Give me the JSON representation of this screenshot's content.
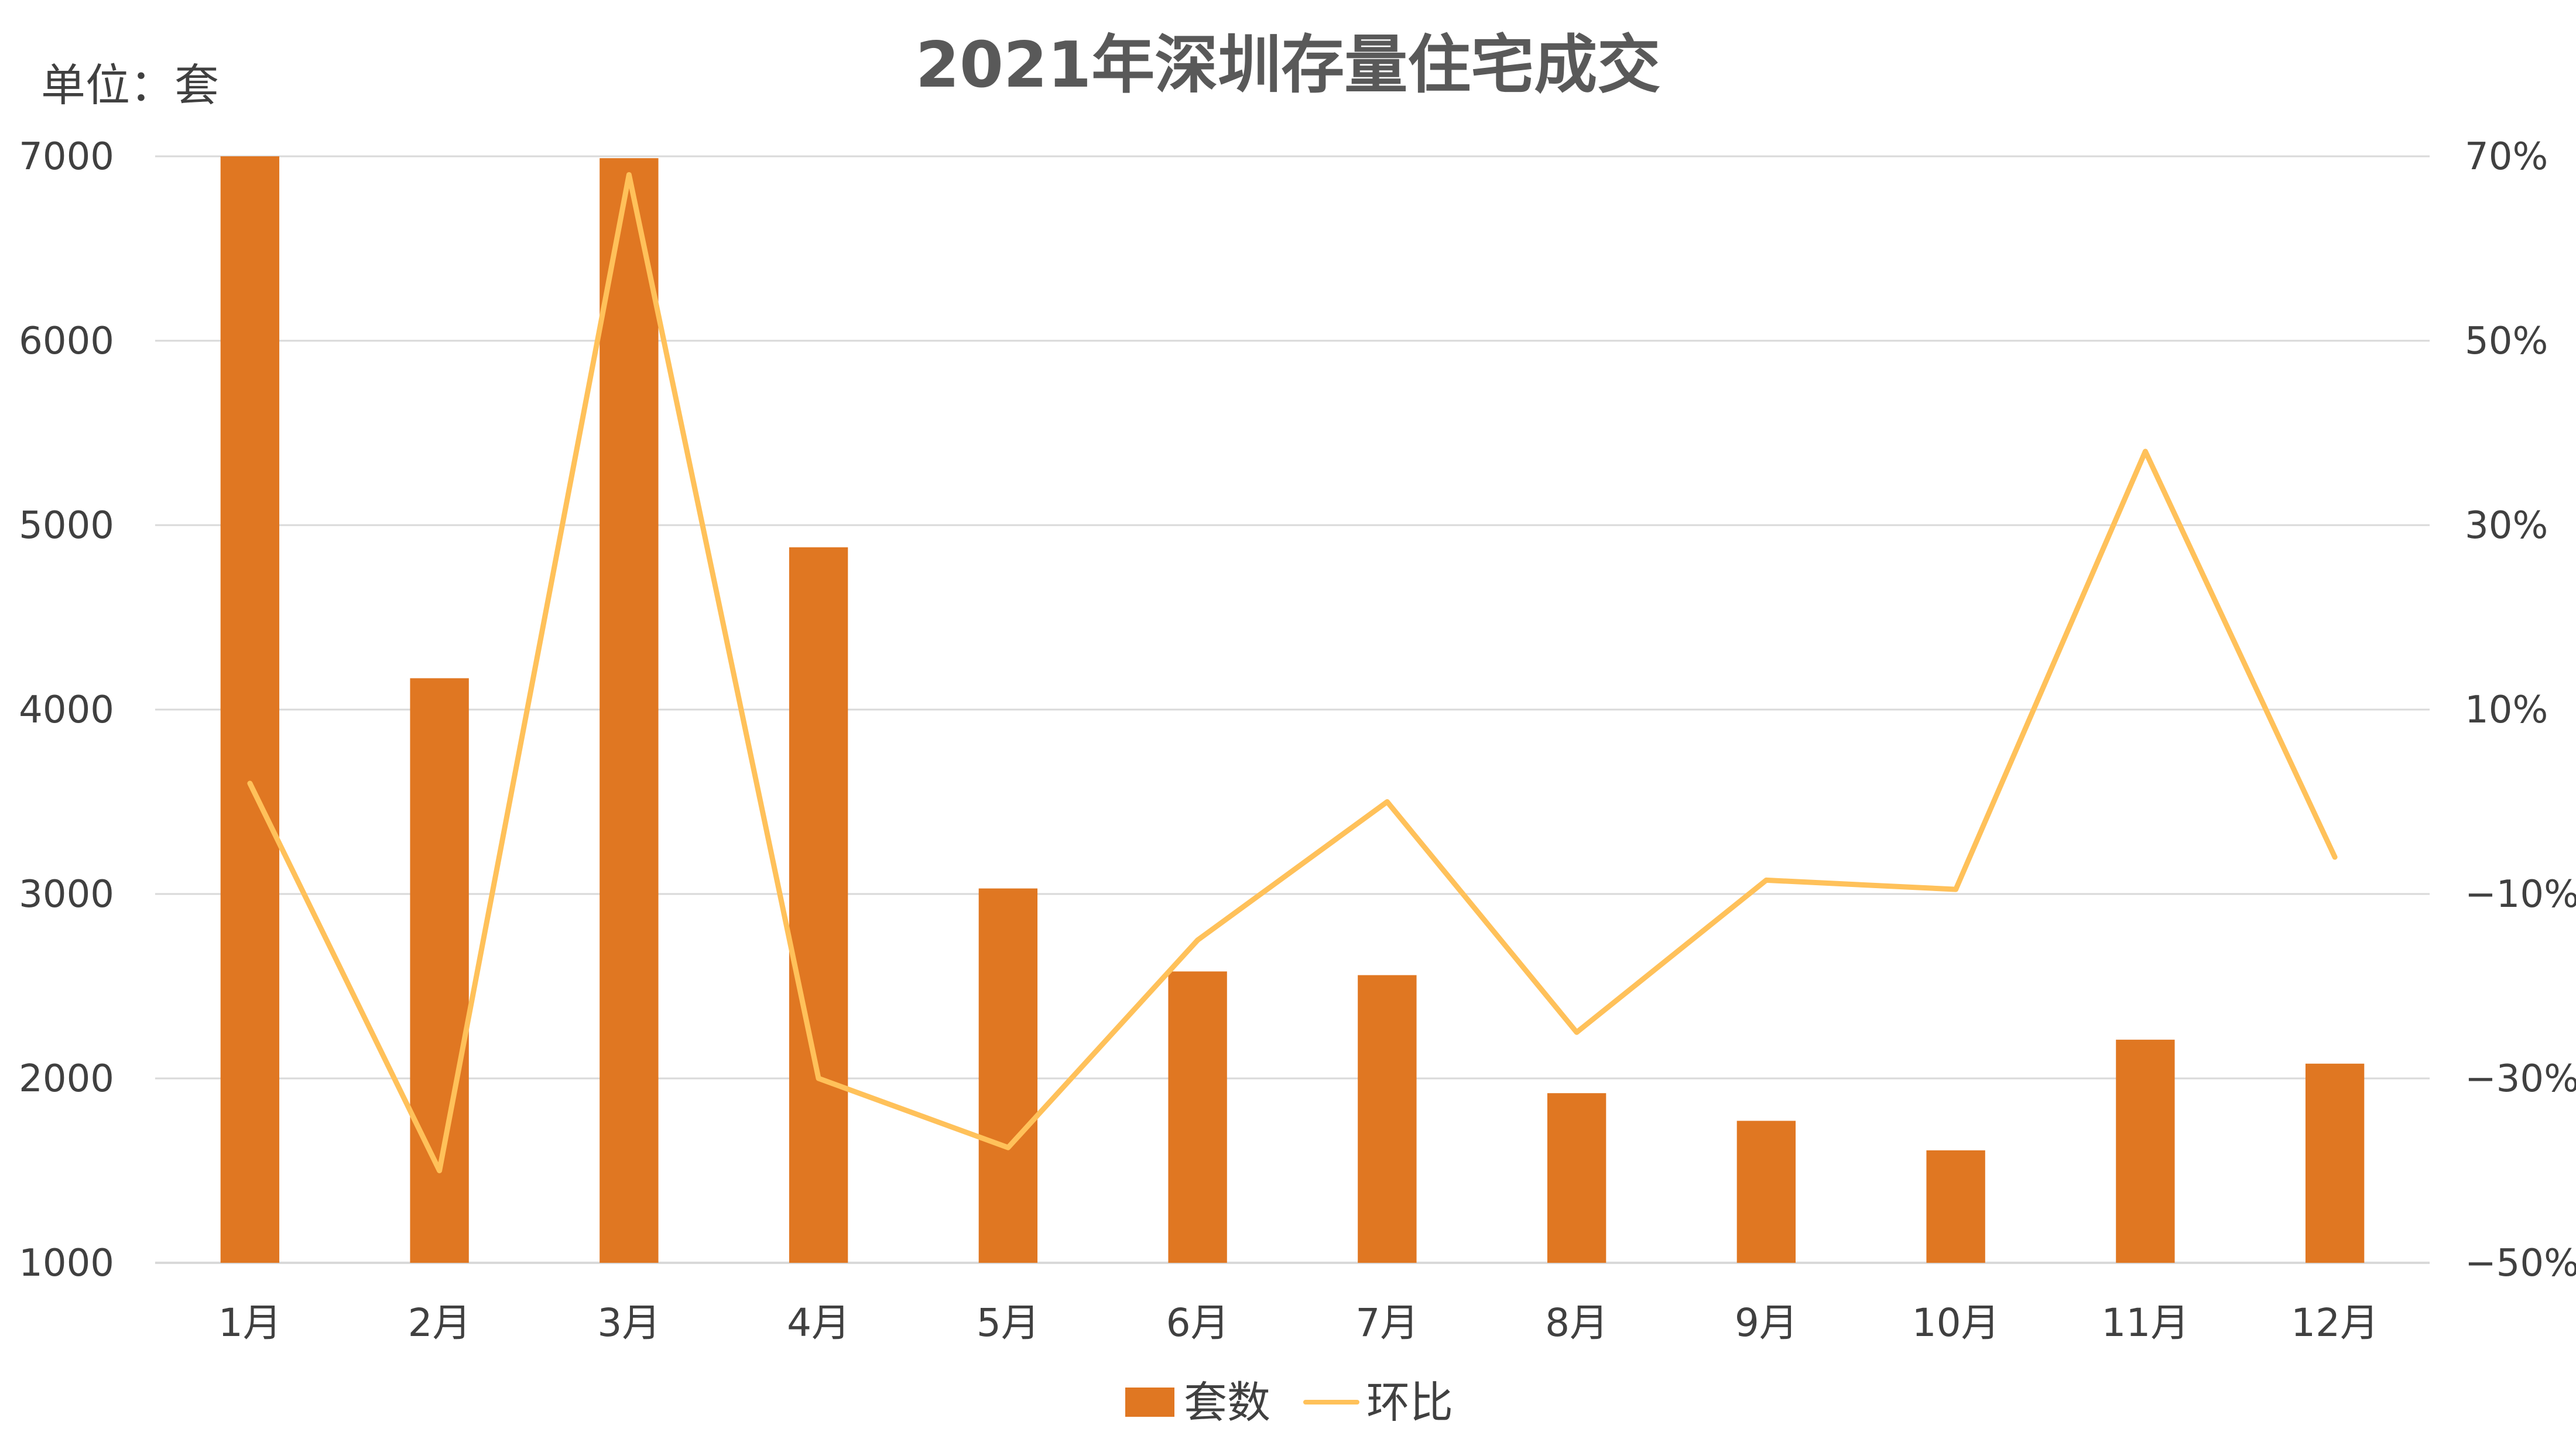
{
  "chart_data": {
    "type": "bar",
    "title": "2021年深圳存量住宅成交",
    "unit_label": "单位：套",
    "categories": [
      "1月",
      "2月",
      "3月",
      "4月",
      "5月",
      "6月",
      "7月",
      "8月",
      "9月",
      "10月",
      "11月",
      "12月"
    ],
    "series": [
      {
        "name": "套数",
        "type": "bar",
        "axis": "left",
        "color": "#E07722",
        "values": [
          7000,
          4170,
          6990,
          4880,
          3030,
          2580,
          2560,
          1920,
          1770,
          1610,
          2210,
          2080
        ]
      },
      {
        "name": "环比",
        "type": "line",
        "axis": "right",
        "color": "#FFC15A",
        "values": [
          2,
          -40,
          68,
          -30,
          -37.5,
          -15,
          0,
          -25,
          -8.5,
          -9.5,
          38,
          -6
        ]
      }
    ],
    "y_left": {
      "min": 1000,
      "max": 7000,
      "ticks": [
        "1000",
        "2000",
        "3000",
        "4000",
        "5000",
        "6000",
        "7000"
      ]
    },
    "y_right": {
      "min": -50,
      "max": 70,
      "ticks": [
        "−50%",
        "−30%",
        "−10%",
        "10%",
        "30%",
        "50%",
        "70%"
      ]
    },
    "grid": true,
    "legend_position": "bottom"
  }
}
